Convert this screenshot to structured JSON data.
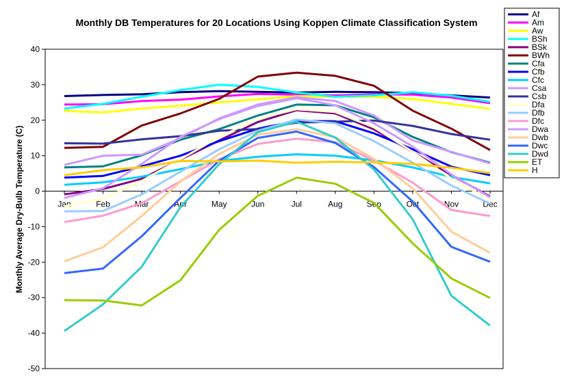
{
  "chart_data": {
    "type": "line",
    "title": "Monthly DB Temperatures for 20 Locations Using Koppen Climate Classification System",
    "ylabel": "Monthly Average Dry-Bulb Temperature (C)",
    "xlabel": "",
    "ylim": [
      -50,
      40
    ],
    "yticks": [
      "40",
      "30",
      "20",
      "10",
      "0",
      "-10",
      "-20",
      "-30",
      "-40",
      "-50"
    ],
    "categories": [
      "Jan",
      "Feb",
      "Mar",
      "Apr",
      "May",
      "Jun",
      "Jul",
      "Aug",
      "Sep",
      "Oct",
      "Nov",
      "Dec"
    ],
    "grid": false,
    "legend_position": "right",
    "series": [
      {
        "name": "Af",
        "color": "#000080",
        "values": [
          26.8,
          27.1,
          27.3,
          27.9,
          28.2,
          28.0,
          27.8,
          28.0,
          27.9,
          27.6,
          27.0,
          26.4
        ]
      },
      {
        "name": "Am",
        "color": "#ff00ff",
        "values": [
          24.4,
          24.5,
          25.4,
          25.8,
          26.7,
          27.4,
          27.2,
          27.0,
          27.3,
          27.2,
          26.4,
          24.8
        ]
      },
      {
        "name": "Aw",
        "color": "#ffff00",
        "values": [
          22.6,
          22.2,
          23.3,
          24.1,
          25.0,
          25.9,
          26.8,
          26.6,
          26.6,
          26.0,
          24.6,
          23.2
        ]
      },
      {
        "name": "BSh",
        "color": "#00ffff",
        "values": [
          23.3,
          24.6,
          26.6,
          28.5,
          30.0,
          29.4,
          27.8,
          26.6,
          27.0,
          27.9,
          26.9,
          25.2
        ]
      },
      {
        "name": "BSk",
        "color": "#800080",
        "values": [
          -0.9,
          0.6,
          3.5,
          8.9,
          14.3,
          19.5,
          22.8,
          21.9,
          17.4,
          11.1,
          4.5,
          -1.5
        ]
      },
      {
        "name": "BWh",
        "color": "#800000",
        "values": [
          12.2,
          12.5,
          18.5,
          21.9,
          26.0,
          32.3,
          33.4,
          32.5,
          29.7,
          22.7,
          17.6,
          11.6
        ]
      },
      {
        "name": "Cfa",
        "color": "#008080",
        "values": [
          6.7,
          7.0,
          10.1,
          14.5,
          17.5,
          21.3,
          24.4,
          24.2,
          20.8,
          15.3,
          11.0,
          8.0
        ]
      },
      {
        "name": "Cfb",
        "color": "#0000ff",
        "values": [
          3.8,
          4.3,
          7.0,
          10.0,
          14.1,
          17.6,
          19.8,
          19.7,
          16.3,
          11.8,
          6.9,
          4.5
        ]
      },
      {
        "name": "Cfc",
        "color": "#00ccff",
        "values": [
          1.8,
          2.5,
          4.1,
          6.2,
          8.5,
          9.7,
          10.4,
          10.0,
          8.7,
          6.7,
          4.0,
          2.2
        ]
      },
      {
        "name": "Csa",
        "color": "#cc99ff",
        "values": [
          7.4,
          10.0,
          10.3,
          14.9,
          20.5,
          24.4,
          26.5,
          25.4,
          21.3,
          14.3,
          11.1,
          7.8
        ]
      },
      {
        "name": "Csb",
        "color": "#333399",
        "values": [
          13.5,
          13.4,
          14.6,
          15.5,
          17.0,
          17.5,
          19.3,
          19.6,
          19.9,
          18.4,
          16.1,
          14.5
        ]
      },
      {
        "name": "Dfa",
        "color": "#ffffcc",
        "values": [
          -4.3,
          -2.2,
          2.9,
          9.0,
          15.3,
          20.4,
          23.1,
          22.3,
          18.0,
          11.1,
          3.5,
          -2.4
        ]
      },
      {
        "name": "Dfb",
        "color": "#99ccff",
        "values": [
          -5.7,
          -5.6,
          -0.9,
          5.5,
          11.8,
          17.0,
          20.2,
          19.1,
          14.1,
          8.0,
          1.6,
          -3.5
        ]
      },
      {
        "name": "Dfc",
        "color": "#ff99cc",
        "values": [
          -8.7,
          -6.9,
          -3.4,
          2.8,
          9.0,
          13.3,
          14.8,
          13.8,
          8.6,
          2.4,
          -5.3,
          -7.0
        ]
      },
      {
        "name": "Dwa",
        "color": "#cc99ff",
        "values": [
          -1.9,
          0.8,
          7.7,
          15.3,
          20.3,
          24.0,
          26.2,
          24.2,
          19.1,
          12.6,
          4.7,
          -1.7
        ]
      },
      {
        "name": "Dwb",
        "color": "#ffcc99",
        "values": [
          -19.8,
          -15.8,
          -7.0,
          2.7,
          10.5,
          15.9,
          17.5,
          15.2,
          9.1,
          0.8,
          -11.4,
          -17.4
        ]
      },
      {
        "name": "Dwc",
        "color": "#3366ff",
        "values": [
          -23.1,
          -21.8,
          -12.7,
          -1.9,
          8.6,
          15.0,
          16.8,
          13.6,
          6.8,
          -2.9,
          -15.7,
          -19.9
        ]
      },
      {
        "name": "Dwd",
        "color": "#33cccc",
        "values": [
          -39.4,
          -31.9,
          -21.3,
          -4.5,
          7.6,
          16.6,
          19.6,
          15.1,
          6.1,
          -7.9,
          -29.5,
          -37.9
        ]
      },
      {
        "name": "ET",
        "color": "#99cc00",
        "values": [
          -30.7,
          -30.8,
          -32.2,
          -25.1,
          -10.9,
          -1.3,
          3.8,
          2.1,
          -3.3,
          -14.7,
          -24.6,
          -30.1
        ]
      },
      {
        "name": "H",
        "color": "#ffcc00",
        "values": [
          4.5,
          5.9,
          6.7,
          8.5,
          8.4,
          8.6,
          8.0,
          8.3,
          8.1,
          7.7,
          6.6,
          5.1
        ]
      }
    ]
  }
}
